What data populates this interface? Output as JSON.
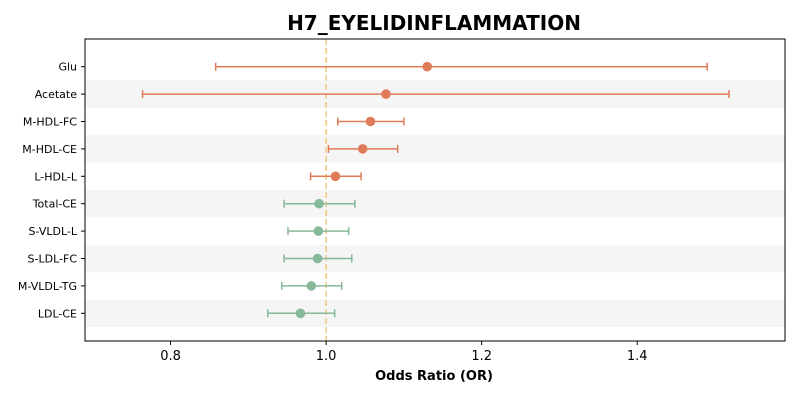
{
  "chart_data": {
    "type": "forest",
    "title": "H7_EYELIDINFLAMMATION",
    "xlabel": "Odds Ratio (OR)",
    "ylabel": "",
    "xlim": [
      0.69,
      1.59
    ],
    "xticks": [
      0.8,
      1.0,
      1.2,
      1.4
    ],
    "xtick_labels": [
      "0.8",
      "1.0",
      "1.2",
      "1.4"
    ],
    "reference_line": 1.0,
    "grid": false,
    "alternate_row_shading": true,
    "colors": {
      "above_one": "#e07b5a",
      "below_one": "#86b89a",
      "reference": "#f5c77e",
      "row_shade": "#f5f5f5"
    },
    "rows": [
      {
        "label": "Glu",
        "or": 1.13,
        "lower": 0.858,
        "upper": 1.49
      },
      {
        "label": "Acetate",
        "or": 1.077,
        "lower": 0.764,
        "upper": 1.518
      },
      {
        "label": "M-HDL-FC",
        "or": 1.057,
        "lower": 1.015,
        "upper": 1.1
      },
      {
        "label": "M-HDL-CE",
        "or": 1.047,
        "lower": 1.003,
        "upper": 1.092
      },
      {
        "label": "L-HDL-L",
        "or": 1.012,
        "lower": 0.98,
        "upper": 1.045
      },
      {
        "label": "Total-CE",
        "or": 0.991,
        "lower": 0.946,
        "upper": 1.037
      },
      {
        "label": "S-VLDL-L",
        "or": 0.99,
        "lower": 0.951,
        "upper": 1.029
      },
      {
        "label": "S-LDL-FC",
        "or": 0.989,
        "lower": 0.946,
        "upper": 1.033
      },
      {
        "label": "M-VLDL-TG",
        "or": 0.981,
        "lower": 0.943,
        "upper": 1.02
      },
      {
        "label": "LDL-CE",
        "or": 0.967,
        "lower": 0.925,
        "upper": 1.011
      }
    ]
  }
}
